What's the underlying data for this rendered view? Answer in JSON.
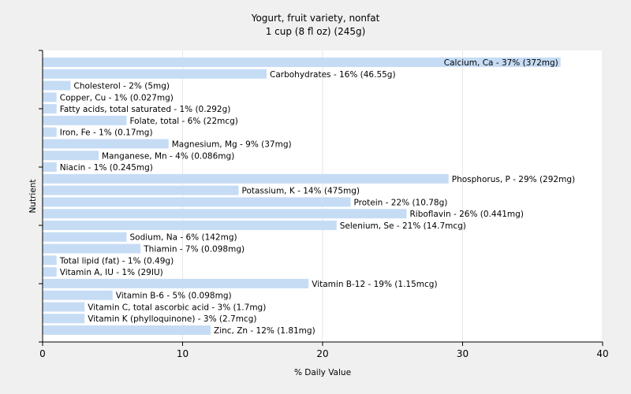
{
  "chart_data": {
    "type": "bar",
    "orientation": "horizontal",
    "title": "Yogurt, fruit variety, nonfat",
    "subtitle": "1 cup (8 fl oz) (245g)",
    "xlabel": "% Daily Value",
    "ylabel": "Nutrient",
    "xlim": [
      0,
      40
    ],
    "xticks": [
      "0",
      "10",
      "20",
      "30",
      "40"
    ],
    "grid": true,
    "bar_color": "#c6dcf5",
    "categories": [
      "Calcium, Ca",
      "Carbohydrates",
      "Cholesterol",
      "Copper, Cu",
      "Fatty acids, total saturated",
      "Folate, total",
      "Iron, Fe",
      "Magnesium, Mg",
      "Manganese, Mn",
      "Niacin",
      "Phosphorus, P",
      "Potassium, K",
      "Protein",
      "Riboflavin",
      "Selenium, Se",
      "Sodium, Na",
      "Thiamin",
      "Total lipid (fat)",
      "Vitamin A, IU",
      "Vitamin B-12",
      "Vitamin B-6",
      "Vitamin C, total ascorbic acid",
      "Vitamin K (phylloquinone)",
      "Zinc, Zn"
    ],
    "values": [
      37,
      16,
      2,
      1,
      1,
      6,
      1,
      9,
      4,
      1,
      29,
      14,
      22,
      26,
      21,
      6,
      7,
      1,
      1,
      19,
      5,
      3,
      3,
      12
    ],
    "labels": [
      "Calcium, Ca - 37% (372mg)",
      "Carbohydrates - 16% (46.55g)",
      "Cholesterol - 2% (5mg)",
      "Copper, Cu - 1% (0.027mg)",
      "Fatty acids, total saturated - 1% (0.292g)",
      "Folate, total - 6% (22mcg)",
      "Iron, Fe - 1% (0.17mg)",
      "Magnesium, Mg - 9% (37mg)",
      "Manganese, Mn - 4% (0.086mg)",
      "Niacin - 1% (0.245mg)",
      "Phosphorus, P - 29% (292mg)",
      "Potassium, K - 14% (475mg)",
      "Protein - 22% (10.78g)",
      "Riboflavin - 26% (0.441mg)",
      "Selenium, Se - 21% (14.7mcg)",
      "Sodium, Na - 6% (142mg)",
      "Thiamin - 7% (0.098mg)",
      "Total lipid (fat) - 1% (0.49g)",
      "Vitamin A, IU - 1% (29IU)",
      "Vitamin B-12 - 19% (1.15mcg)",
      "Vitamin B-6 - 5% (0.098mg)",
      "Vitamin C, total ascorbic acid - 3% (1.7mg)",
      "Vitamin K (phylloquinone) - 3% (2.7mcg)",
      "Zinc, Zn - 12% (1.81mg)"
    ]
  }
}
